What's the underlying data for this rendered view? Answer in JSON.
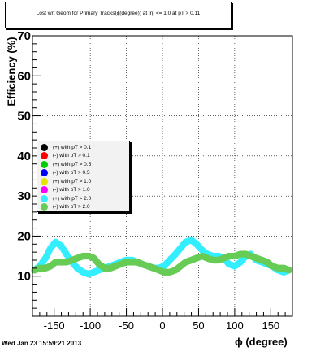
{
  "chart_data": {
    "type": "scatter",
    "title": "Lost wrt Geom for Primary Tracks(ϕ(degree)) at |η| <= 1.0 at pT > 0.11",
    "xlabel": "ϕ (degree)",
    "ylabel": "Efficiency (%)",
    "xlim": [
      -180,
      180
    ],
    "ylim": [
      0,
      70
    ],
    "xticks": [
      -150,
      -100,
      -50,
      0,
      50,
      100,
      150
    ],
    "yticks": [
      10,
      20,
      30,
      40,
      50,
      60,
      70
    ],
    "grid": true,
    "legend_position": "middle-left",
    "series": [
      {
        "name": "(+) with pT > 0.1",
        "color": "#000000",
        "x": [],
        "y": []
      },
      {
        "name": "(-) with pT > 0.1",
        "color": "#ff0000",
        "x": [],
        "y": []
      },
      {
        "name": "(+) with pT > 0.5",
        "color": "#00cc00",
        "x": [],
        "y": []
      },
      {
        "name": "(-) with pT > 0.5",
        "color": "#0000ff",
        "x": [],
        "y": []
      },
      {
        "name": "(+) with pT > 1.0",
        "color": "#e6e600",
        "x": [],
        "y": []
      },
      {
        "name": "(-) with pT > 1.0",
        "color": "#ff00ff",
        "x": [],
        "y": []
      },
      {
        "name": "(+) with pT > 2.0",
        "color": "#33eeff",
        "x": [
          -177,
          -170,
          -162,
          -155,
          -148,
          -140,
          -133,
          -125,
          -118,
          -110,
          -102,
          -95,
          -88,
          -80,
          -72,
          -65,
          -58,
          -50,
          -42,
          -35,
          -28,
          -20,
          -12,
          -5,
          2,
          10,
          18,
          25,
          32,
          40,
          47,
          55,
          62,
          70,
          78,
          85,
          92,
          100,
          108,
          115,
          122,
          130,
          138,
          145,
          152,
          160,
          168,
          175
        ],
        "y": [
          11.5,
          12.5,
          14.5,
          17,
          18.5,
          17.5,
          15.5,
          13.5,
          12,
          11,
          10.5,
          11,
          11.5,
          12,
          12.5,
          13,
          13.5,
          14,
          14,
          13.5,
          13,
          12.5,
          12,
          12,
          12.5,
          14,
          15.5,
          17,
          18.5,
          19,
          18,
          16.5,
          15.5,
          15,
          15,
          14.5,
          13,
          12.5,
          13.5,
          15,
          15.5,
          14,
          13.5,
          13,
          12.5,
          11.5,
          11,
          11.5
        ]
      },
      {
        "name": "(-) with pT > 2.0",
        "color": "#66cc55",
        "x": [
          -177,
          -170,
          -162,
          -155,
          -148,
          -140,
          -133,
          -125,
          -118,
          -110,
          -102,
          -95,
          -88,
          -80,
          -72,
          -65,
          -58,
          -50,
          -42,
          -35,
          -28,
          -20,
          -12,
          -5,
          2,
          10,
          18,
          25,
          32,
          40,
          47,
          55,
          62,
          70,
          78,
          85,
          92,
          100,
          108,
          115,
          122,
          130,
          138,
          145,
          152,
          160,
          168,
          175
        ],
        "y": [
          11.5,
          12,
          12,
          12.5,
          13.5,
          13.5,
          13.5,
          14,
          14.5,
          15,
          15,
          14.5,
          13,
          12,
          12,
          12.5,
          13,
          13.5,
          13.5,
          13.5,
          13,
          12.5,
          12,
          11.5,
          11,
          11,
          11.5,
          12.5,
          13.5,
          14,
          14.5,
          15,
          14.5,
          14,
          14,
          14.5,
          15,
          15,
          15.5,
          15.5,
          15,
          14.5,
          14,
          13.5,
          12.5,
          12,
          12,
          11.5
        ]
      }
    ]
  },
  "footer_text": "Wed Jan 23 15:59:21 2013"
}
